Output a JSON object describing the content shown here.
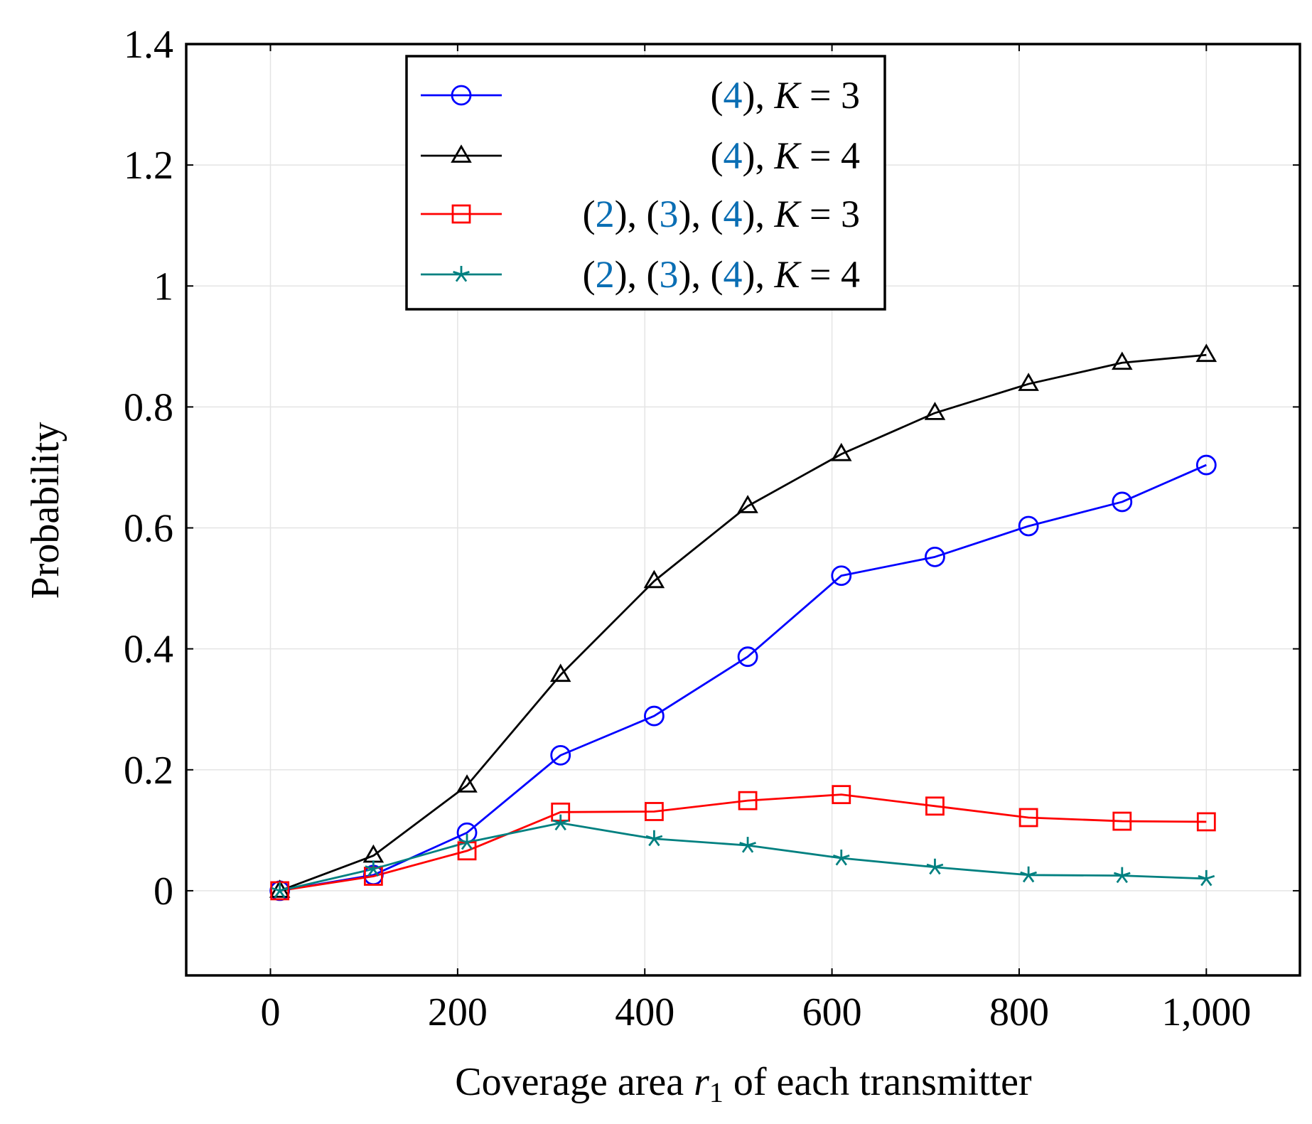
{
  "chart_data": {
    "type": "line",
    "title": "",
    "xlabel": "Coverage area r1 of each transmitter",
    "xlabel_parts": {
      "before": "Coverage area ",
      "var": "r",
      "sub": "1",
      "after": " of each transmitter"
    },
    "ylabel": "Probability",
    "xlim": [
      -90,
      1100
    ],
    "ylim": [
      -0.14,
      1.4
    ],
    "xticks": [
      0,
      200,
      400,
      600,
      800,
      1000
    ],
    "xtick_labels": [
      "0",
      "200",
      "400",
      "600",
      "800",
      "1,000"
    ],
    "yticks": [
      0,
      0.2,
      0.4,
      0.6,
      0.8,
      1.0,
      1.2,
      1.4
    ],
    "ytick_labels": [
      "0",
      "0.2",
      "0.4",
      "0.6",
      "0.8",
      "1",
      "1.2",
      "1.4"
    ],
    "grid": true,
    "legend_position": "top-center",
    "x": [
      10,
      110,
      210,
      310,
      410,
      510,
      610,
      710,
      810,
      910,
      1000
    ],
    "series": [
      {
        "name": "(4), K = 3",
        "label_parts": [
          "(",
          "4",
          "), ",
          "K",
          " = 3"
        ],
        "color": "#0000ff",
        "marker": "circle",
        "values": [
          0.0,
          0.026,
          0.096,
          0.224,
          0.289,
          0.387,
          0.521,
          0.552,
          0.603,
          0.643,
          0.704
        ]
      },
      {
        "name": "(4), K = 4",
        "label_parts": [
          "(",
          "4",
          "), ",
          "K",
          " = 4"
        ],
        "color": "#000000",
        "marker": "triangle",
        "values": [
          0.0,
          0.058,
          0.174,
          0.357,
          0.512,
          0.636,
          0.722,
          0.79,
          0.838,
          0.873,
          0.886
        ]
      },
      {
        "name": "(2), (3), (4), K = 3",
        "label_parts": [
          "(",
          "2",
          "), (",
          "3",
          "), (",
          "4",
          "), ",
          "K",
          " = 3"
        ],
        "color": "#ff0000",
        "marker": "square",
        "values": [
          0.0,
          0.024,
          0.066,
          0.13,
          0.131,
          0.149,
          0.159,
          0.14,
          0.121,
          0.115,
          0.114
        ]
      },
      {
        "name": "(2), (3), (4), K = 4",
        "label_parts": [
          "(",
          "2",
          "), (",
          "3",
          "), (",
          "4",
          "), ",
          "K",
          " = 4"
        ],
        "color": "#008080",
        "marker": "star",
        "values": [
          0.0,
          0.036,
          0.08,
          0.112,
          0.086,
          0.075,
          0.054,
          0.039,
          0.026,
          0.025,
          0.02
        ]
      }
    ],
    "reference_color": "#0a6eb4"
  }
}
